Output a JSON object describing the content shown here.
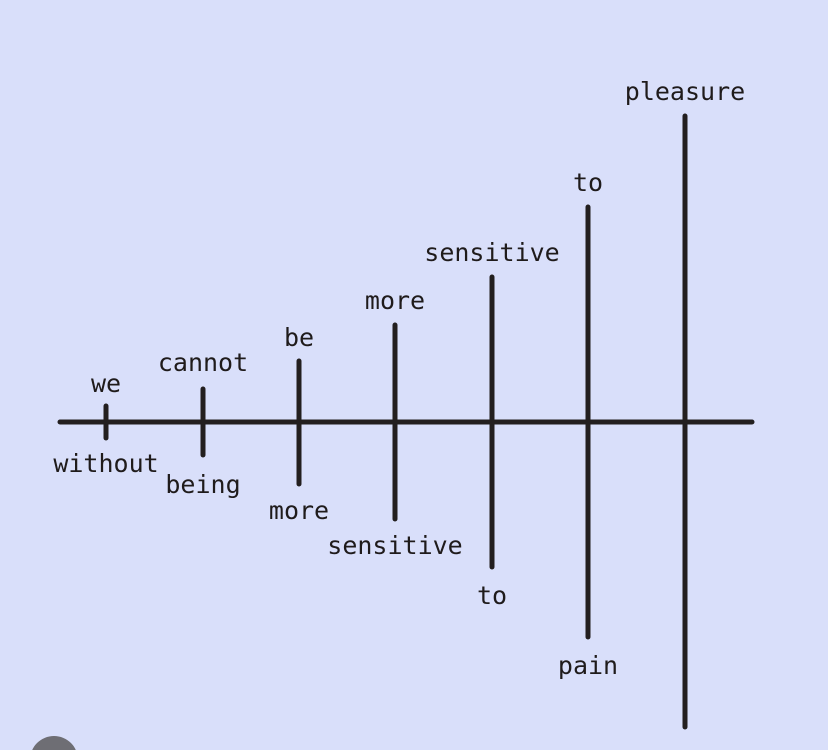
{
  "colors": {
    "background": "#d9dffa",
    "ink": "#231f1f"
  },
  "diagram": {
    "words_above": [
      "we",
      "cannot",
      "be",
      "more",
      "sensitive",
      "to",
      "pleasure"
    ],
    "words_below": [
      "without",
      "being",
      "more",
      "sensitive",
      "to",
      "pain",
      ""
    ]
  }
}
